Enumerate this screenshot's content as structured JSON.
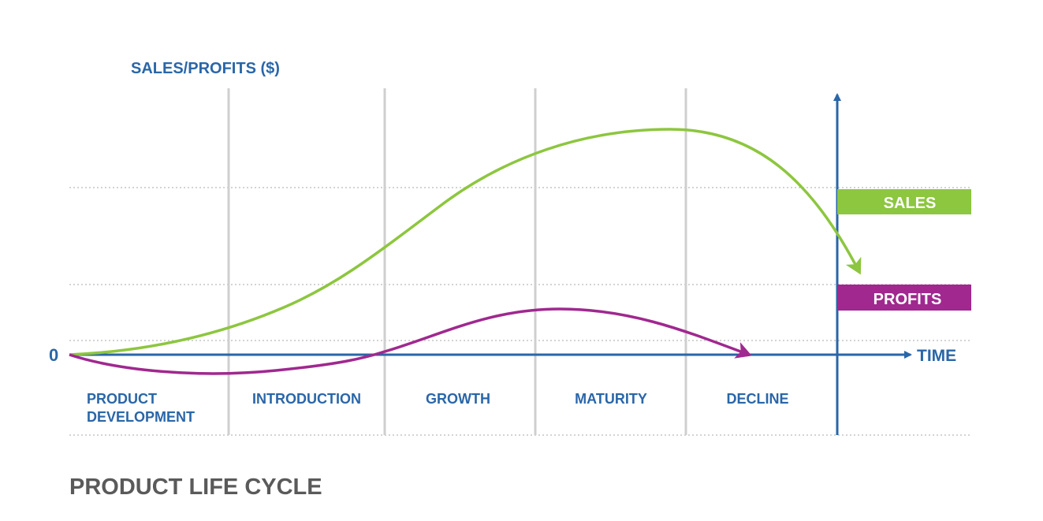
{
  "y_axis_label": "SALES/PROFITS ($)",
  "x_axis_label": "TIME",
  "origin_label": "0",
  "stages": [
    {
      "lines": [
        "PRODUCT",
        "DEVELOPMENT"
      ]
    },
    {
      "lines": [
        "INTRODUCTION"
      ]
    },
    {
      "lines": [
        "GROWTH"
      ]
    },
    {
      "lines": [
        "MATURITY"
      ]
    },
    {
      "lines": [
        "DECLINE"
      ]
    }
  ],
  "legend": {
    "sales": {
      "label": "SALES",
      "color": "#8dc63f"
    },
    "profits": {
      "label": "PROFITS",
      "color": "#a0288f"
    }
  },
  "axis_color": "#2a66a8",
  "caption": "PRODUCT LIFE CYCLE"
}
